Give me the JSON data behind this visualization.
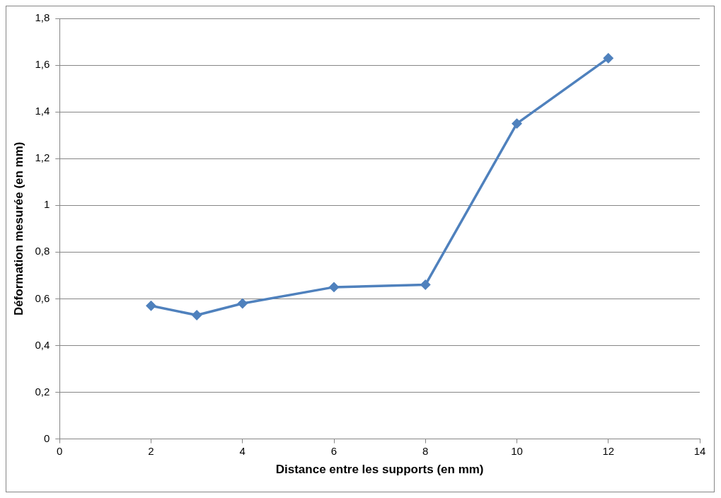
{
  "chart_data": {
    "type": "line",
    "xlabel": "Distance entre les supports (en mm)",
    "ylabel": "Déformation mesurée (en mm)",
    "x": [
      2,
      3,
      4,
      6,
      8,
      10,
      12
    ],
    "series": [
      {
        "color": "#4f81bd",
        "values": [
          0.57,
          0.53,
          0.58,
          0.65,
          0.66,
          1.35,
          1.63
        ]
      }
    ],
    "xlim": [
      0,
      14
    ],
    "xticks": [
      0,
      2,
      4,
      6,
      8,
      10,
      12,
      14
    ],
    "ylim": [
      0,
      1.8
    ],
    "yticks": [
      0,
      {
        "value": 0.2,
        "label": "0,2"
      },
      {
        "value": 0.4,
        "label": "0,4"
      },
      {
        "value": 0.6,
        "label": "0,6"
      },
      {
        "value": 0.8,
        "label": "0,8"
      },
      1,
      {
        "value": 1.2,
        "label": "1,2"
      },
      {
        "value": 1.4,
        "label": "1,4"
      },
      {
        "value": 1.6,
        "label": "1,6"
      },
      {
        "value": 1.8,
        "label": "1,8"
      }
    ],
    "grid": "y",
    "legend": false,
    "marker": "diamond",
    "line_style": "solid"
  }
}
